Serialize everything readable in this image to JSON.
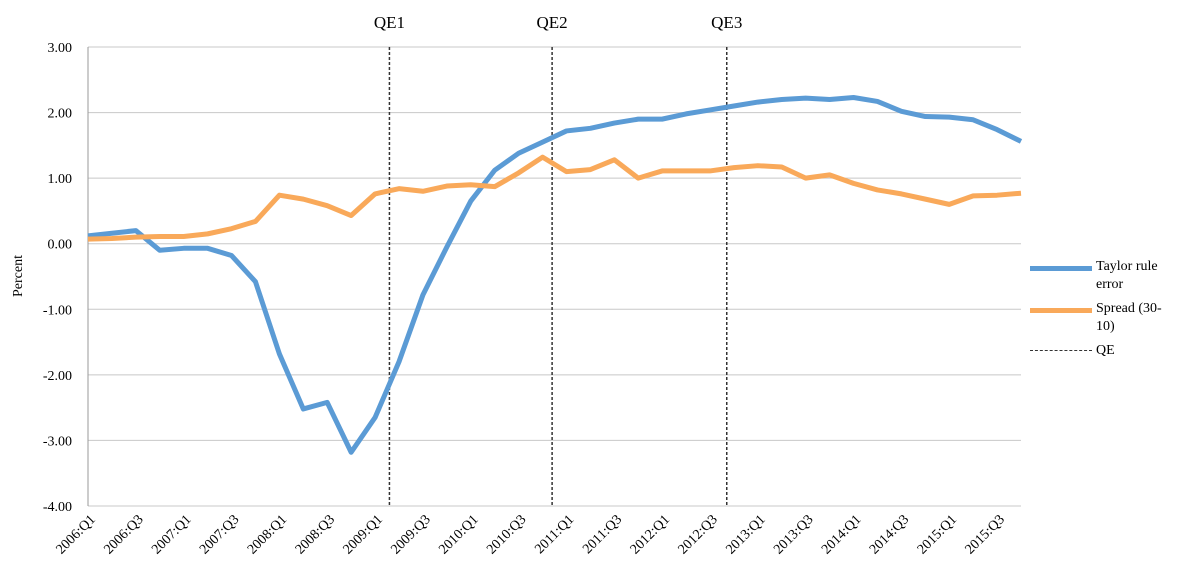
{
  "chart_data": {
    "type": "line",
    "y_label": "Percent",
    "categories": [
      "2006:Q1",
      null,
      "2006:Q3",
      null,
      "2007:Q1",
      null,
      "2007:Q3",
      null,
      "2008:Q1",
      null,
      "2008:Q3",
      null,
      "2009:Q1",
      null,
      "2009:Q3",
      null,
      "2010:Q1",
      null,
      "2010:Q3",
      null,
      "2011:Q1",
      null,
      "2011:Q3",
      null,
      "2012:Q1",
      null,
      "2012:Q3",
      null,
      "2013:Q1",
      null,
      "2013:Q3",
      null,
      "2014:Q1",
      null,
      "2014:Q3",
      null,
      "2015:Q1",
      null,
      "2015:Q3",
      null
    ],
    "series": [
      {
        "name": "Taylor rule error",
        "color": "#5b9bd5",
        "values": [
          0.12,
          0.16,
          0.2,
          -0.1,
          -0.07,
          -0.07,
          -0.18,
          -0.58,
          -1.68,
          -2.52,
          -2.42,
          -3.18,
          -2.65,
          -1.8,
          -0.78,
          -0.05,
          0.65,
          1.12,
          1.38,
          1.55,
          1.72,
          1.76,
          1.84,
          1.9,
          1.9,
          1.98,
          2.04,
          2.1,
          2.16,
          2.2,
          2.22,
          2.2,
          2.23,
          2.17,
          2.02,
          1.94,
          1.93,
          1.89,
          1.74,
          1.56
        ]
      },
      {
        "name": "Spread (30-10)",
        "color": "#f9a95a",
        "values": [
          0.07,
          0.08,
          0.1,
          0.11,
          0.11,
          0.15,
          0.23,
          0.34,
          0.74,
          0.68,
          0.58,
          0.43,
          0.76,
          0.84,
          0.8,
          0.88,
          0.9,
          0.87,
          1.08,
          1.32,
          1.1,
          1.13,
          1.28,
          1.0,
          1.11,
          1.11,
          1.11,
          1.16,
          1.19,
          1.17,
          1.0,
          1.05,
          0.92,
          0.82,
          0.76,
          0.68,
          0.6,
          0.73,
          0.74,
          0.77
        ]
      }
    ],
    "qe_legend": "QE",
    "qe_lines": [
      {
        "label": "QE1",
        "x": 12.6
      },
      {
        "label": "QE2",
        "x": 19.4
      },
      {
        "label": "QE3",
        "x": 26.7
      }
    ],
    "ylim": [
      -4,
      3
    ],
    "yticks": [
      {
        "value": -4,
        "label": "-4.00"
      },
      {
        "value": -3,
        "label": "-3.00"
      },
      {
        "value": -2,
        "label": "-2.00"
      },
      {
        "value": -1,
        "label": "-1.00"
      },
      {
        "value": 0,
        "label": "0.00"
      },
      {
        "value": 1,
        "label": "1.00"
      },
      {
        "value": 2,
        "label": "2.00"
      },
      {
        "value": 3,
        "label": "3.00"
      }
    ],
    "grid": true
  }
}
